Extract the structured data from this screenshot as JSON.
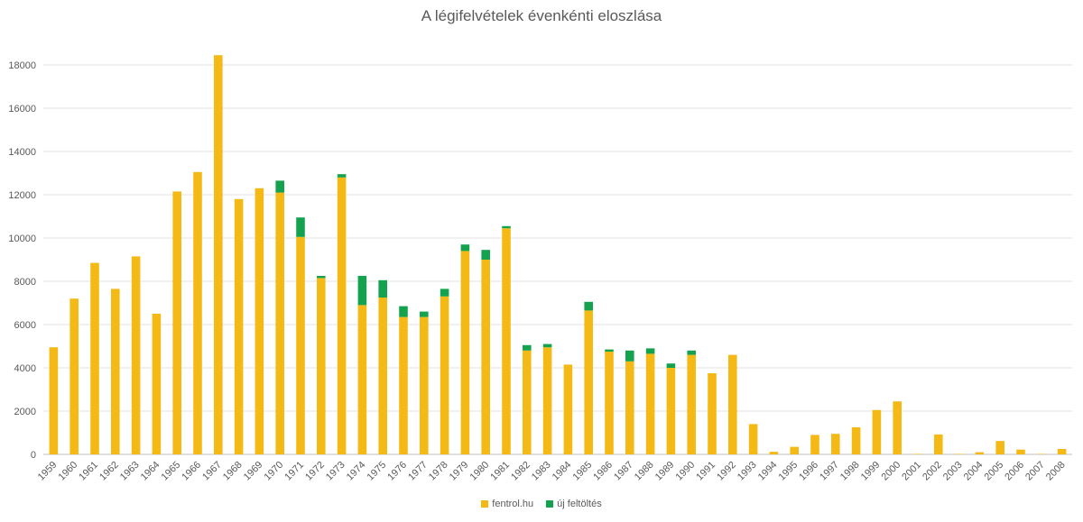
{
  "chart_data": {
    "type": "bar",
    "stacked": true,
    "title": "A légifelvételek évenkénti eloszlása",
    "xlabel": "",
    "ylabel": "",
    "ylim": [
      0,
      18000
    ],
    "yticks": [
      0,
      2000,
      4000,
      6000,
      8000,
      10000,
      12000,
      14000,
      16000,
      18000
    ],
    "grid": true,
    "legend_position": "bottom",
    "categories": [
      "1959",
      "1960",
      "1961",
      "1962",
      "1963",
      "1964",
      "1965",
      "1966",
      "1967",
      "1968",
      "1969",
      "1970",
      "1971",
      "1972",
      "1973",
      "1974",
      "1975",
      "1976",
      "1977",
      "1978",
      "1979",
      "1980",
      "1981",
      "1982",
      "1983",
      "1984",
      "1985",
      "1986",
      "1987",
      "1988",
      "1989",
      "1990",
      "1991",
      "1992",
      "1993",
      "1994",
      "1995",
      "1996",
      "1997",
      "1998",
      "1999",
      "2000",
      "2001",
      "2002",
      "2003",
      "2004",
      "2005",
      "2006",
      "2007",
      "2008"
    ],
    "series": [
      {
        "name": "fentrol.hu",
        "color": "#F4B914",
        "values": [
          4950,
          7200,
          8850,
          7650,
          9150,
          6500,
          12150,
          13050,
          18450,
          11800,
          12300,
          12100,
          10050,
          8150,
          12800,
          6900,
          7250,
          6350,
          6350,
          7300,
          9400,
          9000,
          10450,
          4800,
          4950,
          4150,
          6650,
          4750,
          4300,
          4650,
          4000,
          4600,
          3750,
          4600,
          1400,
          120,
          350,
          900,
          950,
          1250,
          2050,
          2450,
          20,
          920,
          20,
          100,
          620,
          220,
          20,
          250
        ]
      },
      {
        "name": "új feltöltés",
        "color": "#14A24E",
        "values": [
          0,
          0,
          0,
          0,
          0,
          0,
          0,
          0,
          0,
          0,
          0,
          550,
          900,
          100,
          150,
          1350,
          800,
          500,
          250,
          350,
          300,
          450,
          100,
          250,
          150,
          0,
          400,
          100,
          500,
          250,
          200,
          200,
          0,
          0,
          0,
          0,
          0,
          0,
          0,
          0,
          0,
          0,
          0,
          0,
          0,
          0,
          0,
          0,
          0,
          0
        ]
      }
    ]
  }
}
